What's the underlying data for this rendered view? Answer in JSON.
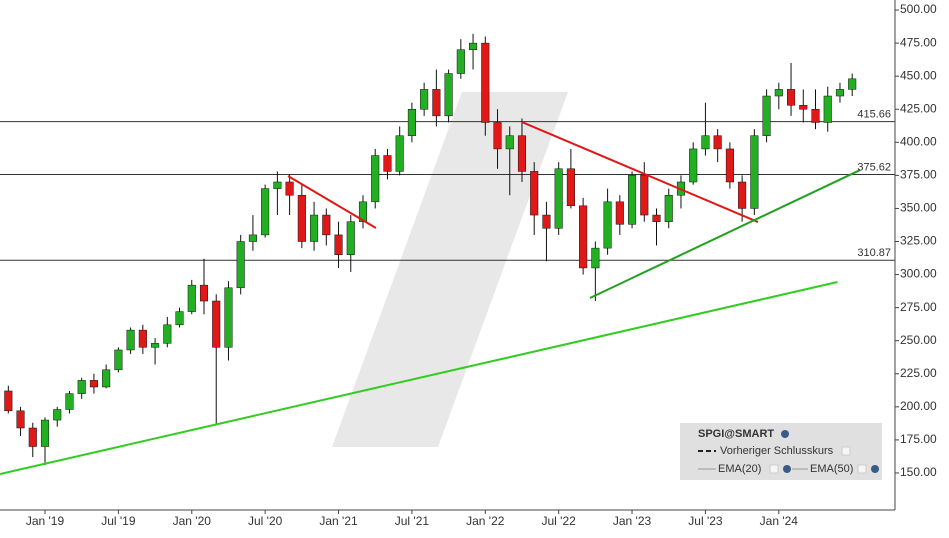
{
  "chart_data": {
    "type": "candlestick",
    "open": [
      212,
      197,
      184,
      170,
      190,
      198,
      210,
      220,
      215,
      228,
      243,
      258,
      245,
      248,
      262,
      272,
      292,
      280,
      245,
      290,
      325,
      330,
      365,
      370,
      360,
      325,
      345,
      330,
      315,
      340,
      355,
      390,
      378,
      405,
      425,
      440,
      420,
      452,
      470,
      475,
      415,
      395,
      405,
      378,
      345,
      335,
      380,
      352,
      305,
      320,
      355,
      338,
      375,
      345,
      340,
      360,
      370,
      395,
      405,
      395,
      370,
      350,
      405,
      435,
      440,
      428,
      425,
      415,
      435,
      440
    ],
    "high": [
      216,
      200,
      188,
      192,
      200,
      212,
      222,
      225,
      232,
      245,
      260,
      262,
      252,
      268,
      275,
      296,
      312,
      285,
      295,
      330,
      345,
      368,
      378,
      376,
      368,
      355,
      350,
      340,
      345,
      360,
      395,
      395,
      412,
      430,
      445,
      455,
      455,
      478,
      482,
      480,
      425,
      412,
      418,
      385,
      355,
      385,
      395,
      358,
      325,
      365,
      360,
      378,
      385,
      350,
      365,
      375,
      400,
      430,
      410,
      400,
      375,
      410,
      440,
      445,
      460,
      440,
      440,
      442,
      445,
      452
    ],
    "low": [
      195,
      178,
      162,
      156,
      185,
      195,
      206,
      210,
      214,
      226,
      240,
      240,
      232,
      245,
      260,
      270,
      270,
      187,
      235,
      285,
      318,
      328,
      345,
      345,
      320,
      318,
      322,
      305,
      302,
      335,
      350,
      372,
      375,
      400,
      420,
      412,
      415,
      448,
      455,
      405,
      380,
      360,
      370,
      330,
      310,
      330,
      350,
      300,
      280,
      315,
      330,
      335,
      340,
      322,
      335,
      350,
      368,
      390,
      385,
      365,
      340,
      345,
      400,
      425,
      420,
      415,
      410,
      408,
      430,
      435
    ],
    "close": [
      197,
      184,
      170,
      190,
      198,
      210,
      220,
      215,
      228,
      243,
      258,
      245,
      248,
      262,
      272,
      292,
      280,
      245,
      290,
      325,
      330,
      365,
      370,
      360,
      325,
      345,
      330,
      315,
      340,
      355,
      390,
      378,
      405,
      425,
      440,
      420,
      452,
      470,
      475,
      415,
      395,
      405,
      378,
      345,
      335,
      380,
      352,
      305,
      320,
      355,
      338,
      375,
      345,
      340,
      360,
      370,
      395,
      405,
      395,
      370,
      350,
      405,
      435,
      440,
      428,
      425,
      415,
      435,
      440,
      448
    ],
    "up_color": "#22b022",
    "down_color": "#e01818",
    "xlim": [
      -0.68,
      72.5
    ],
    "xticks": [
      {
        "value": 3,
        "label": "Jan '19"
      },
      {
        "value": 9,
        "label": "Jul '19"
      },
      {
        "value": 15,
        "label": "Jan '20"
      },
      {
        "value": 21,
        "label": "Jul '20"
      },
      {
        "value": 27,
        "label": "Jan '21"
      },
      {
        "value": 33,
        "label": "Jul '21"
      },
      {
        "value": 39,
        "label": "Jan '22"
      },
      {
        "value": 45,
        "label": "Jul '22"
      },
      {
        "value": 51,
        "label": "Jan '23"
      },
      {
        "value": 57,
        "label": "Jul '23"
      },
      {
        "value": 63,
        "label": "Jan '24"
      }
    ],
    "ylim": [
      122,
      507.6
    ],
    "yticks": [
      {
        "value": 150,
        "label": "150.00"
      },
      {
        "value": 175,
        "label": "175.00"
      },
      {
        "value": 200,
        "label": "200.00"
      },
      {
        "value": 225,
        "label": "225.00"
      },
      {
        "value": 250,
        "label": "250.00"
      },
      {
        "value": 275,
        "label": "275.00"
      },
      {
        "value": 300,
        "label": "300.00"
      },
      {
        "value": 325,
        "label": "325.00"
      },
      {
        "value": 350,
        "label": "350.00"
      },
      {
        "value": 375,
        "label": "375.00"
      },
      {
        "value": 400,
        "label": "400.00"
      },
      {
        "value": 425,
        "label": "425.00"
      },
      {
        "value": 450,
        "label": "450.00"
      },
      {
        "value": 475,
        "label": "475.00"
      },
      {
        "value": 500,
        "label": "500.00"
      }
    ],
    "levels": [
      415.66,
      375.62,
      310.87
    ],
    "trendlines": [
      {
        "color": "#33cc22",
        "x": [
          -0.68,
          67.8
        ],
        "y": [
          149.2,
          294.4
        ]
      },
      {
        "color": "#e01818",
        "x": [
          22.87,
          30.06
        ],
        "y": [
          374.5,
          335.2
        ]
      },
      {
        "color": "#e01818",
        "x": [
          42.0,
          61.3
        ],
        "y": [
          415.3,
          339.7
        ]
      },
      {
        "color": "#22a022",
        "x": [
          47.56,
          69.64
        ],
        "y": [
          282.3,
          379.0
        ]
      }
    ],
    "legend": {
      "title": "SPGI@SMART",
      "items": [
        "Vorheriger Schlusskurs",
        "EMA(20)",
        "EMA(50)"
      ]
    }
  }
}
